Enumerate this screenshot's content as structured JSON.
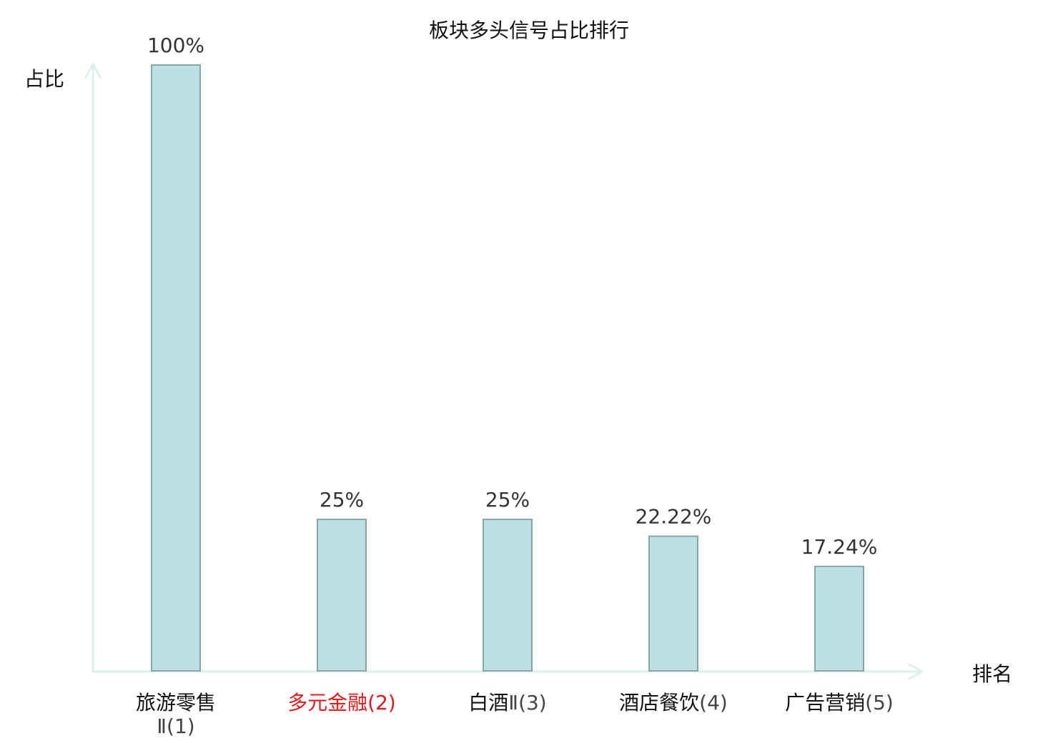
{
  "chart_data": {
    "type": "bar",
    "title": "板块多头信号占比排行",
    "ylabel": "占比",
    "xlabel": "排名",
    "ylim": [
      0,
      100
    ],
    "grid": false,
    "categories": [
      {
        "name": "旅游零售",
        "suffix": "Ⅱ(1)",
        "highlight": false,
        "wrap": true
      },
      {
        "name": "多元金融",
        "suffix": "(2)",
        "highlight": true,
        "wrap": false
      },
      {
        "name": "白酒",
        "suffix": "Ⅱ(3)",
        "highlight": false,
        "wrap": false
      },
      {
        "name": "酒店餐饮",
        "suffix": "(4)",
        "highlight": false,
        "wrap": false
      },
      {
        "name": "广告营销",
        "suffix": "(5)",
        "highlight": false,
        "wrap": false
      }
    ],
    "values": [
      100,
      25,
      25,
      22.22,
      17.24
    ],
    "value_labels": [
      "100%",
      "25%",
      "25%",
      "22.22%",
      "17.24%"
    ],
    "colors": {
      "bar_fill": "#bde0e2",
      "bar_stroke": "#8aa5a6",
      "axis": "#ddf0ee",
      "text": "#111111",
      "suffix_text": "#444444",
      "highlight_text": "#e0191c",
      "value_text": "#333333"
    }
  }
}
